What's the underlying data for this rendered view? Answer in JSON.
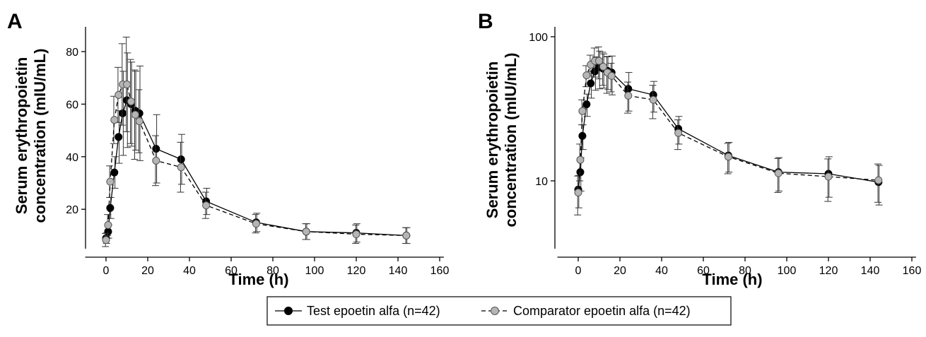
{
  "chart_data": [
    {
      "panel": "A",
      "type": "line",
      "scale": "linear",
      "xlabel": "Time (h)",
      "ylabel_line1": "Serum erythropoietin",
      "ylabel_line2": "concentration (mIU/mL)",
      "xlim": [
        -5,
        162
      ],
      "ylim": [
        5,
        90
      ],
      "xticks": [
        "0",
        "20",
        "40",
        "60",
        "80",
        "100",
        "120",
        "140",
        "160"
      ],
      "yticks": [
        "20",
        "40",
        "60",
        "80"
      ],
      "series": [
        {
          "name": "Test epoetin alfa (n=42)",
          "color": "#000000",
          "dash": "solid",
          "x": [
            0,
            1,
            2,
            4,
            6,
            8,
            10,
            12,
            14,
            16,
            24,
            36,
            48,
            72,
            96,
            120,
            144
          ],
          "y": [
            9,
            11.5,
            20.5,
            34,
            47.5,
            56.5,
            61.5,
            60,
            57.5,
            56.5,
            43,
            39,
            23,
            15,
            11.5,
            11,
            10
          ],
          "err": [
            2,
            2.5,
            4,
            6,
            10,
            16,
            18,
            16,
            15,
            18,
            13,
            9.5,
            5,
            3.5,
            3,
            3.5,
            3
          ]
        },
        {
          "name": "Comparator epoetin alfa (n=42)",
          "color": "#b5b5b5",
          "dash": "dashed",
          "x": [
            0,
            1,
            2,
            4,
            6,
            8,
            10,
            12,
            14,
            16,
            24,
            36,
            48,
            72,
            96,
            120,
            144
          ],
          "y": [
            8.3,
            14,
            30.5,
            54,
            63.5,
            67.5,
            67.5,
            61,
            56,
            53.5,
            38.5,
            36,
            21.5,
            14.5,
            11.5,
            10.5,
            10
          ],
          "err": [
            2.5,
            4,
            6,
            9,
            10.5,
            15.5,
            18,
            16,
            17,
            12,
            9.5,
            9.5,
            5,
            3.5,
            3,
            3.5,
            3
          ]
        }
      ]
    },
    {
      "panel": "B",
      "type": "line",
      "scale": "log",
      "xlabel": "Time (h)",
      "ylabel_line1": "Serum erythropoietin",
      "ylabel_line2": "concentration (mIU/mL)",
      "xlim": [
        -5,
        162
      ],
      "ylim": [
        3,
        130
      ],
      "xticks": [
        "0",
        "20",
        "40",
        "60",
        "80",
        "100",
        "120",
        "140",
        "160"
      ],
      "yticks": [
        "10",
        "100"
      ],
      "series": [
        {
          "name": "Test epoetin alfa (n=42)",
          "color": "#000000",
          "dash": "solid",
          "x": [
            0,
            1,
            2,
            4,
            6,
            8,
            10,
            12,
            14,
            16,
            24,
            36,
            48,
            72,
            96,
            120,
            144
          ],
          "y": [
            8.7,
            11.5,
            20.5,
            34,
            47.5,
            57.5,
            61.5,
            60,
            58,
            56.5,
            43.5,
            39.5,
            23,
            15,
            11.5,
            11.2,
            9.8
          ],
          "err": [
            2.2,
            3,
            4,
            6,
            10,
            15,
            18,
            16,
            15,
            17,
            13,
            9.5,
            5,
            3.5,
            3,
            3.5,
            3
          ]
        },
        {
          "name": "Comparator epoetin alfa (n=42)",
          "color": "#b5b5b5",
          "dash": "dashed",
          "x": [
            0,
            1,
            2,
            4,
            6,
            8,
            10,
            12,
            14,
            16,
            24,
            36,
            48,
            72,
            96,
            120,
            144
          ],
          "y": [
            8.3,
            14,
            30.5,
            54,
            64,
            68,
            68,
            62,
            56.5,
            53.5,
            39,
            36.5,
            21.5,
            14.7,
            11.3,
            10.7,
            10.1
          ],
          "err": [
            2.5,
            4,
            6,
            9,
            10.5,
            15.5,
            17,
            16,
            16,
            12,
            9.5,
            9.5,
            5,
            3.5,
            3,
            3.5,
            3
          ]
        }
      ]
    }
  ],
  "legend": {
    "items": [
      "Test epoetin alfa (n=42)",
      "Comparator epoetin alfa (n=42)"
    ],
    "placement": "bottom-center"
  }
}
